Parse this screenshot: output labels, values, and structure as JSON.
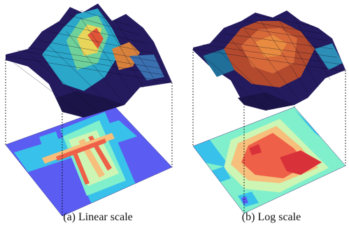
{
  "panels": [
    {
      "caption": "(a) Linear scale",
      "surface_colormap": "turbo-like (purple-blue-green-yellow-red)",
      "contour_levels": [
        "#5b5cf2",
        "#38c1ea",
        "#80f0cc",
        "#cdf6b4",
        "#f6c07c",
        "#ee6048"
      ]
    },
    {
      "caption": "(b) Log scale",
      "surface_colormap": "turbo-like (purple-blue-green-yellow-red)",
      "contour_levels": [
        "#5b5cf2",
        "#38c1ea",
        "#80f0cc",
        "#cdf6b4",
        "#f6c07c",
        "#ee6048"
      ]
    }
  ]
}
